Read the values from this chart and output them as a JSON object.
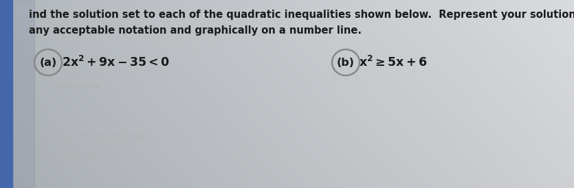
{
  "bg_color_left": "#b0b8c8",
  "bg_color_right": "#d8dce0",
  "paper_color_left": "#c8cdd5",
  "paper_color_right": "#e8eaec",
  "binder_color": "#4466aa",
  "instruction_line1": "ind the solution set to each of the quadratic inequalities shown below.  Represent your solution set using",
  "instruction_line2": "any acceptable notation and graphically on a number line.",
  "part_a_label": "(a)",
  "part_b_label": "(b)",
  "text_color": "#1a1a1a",
  "faded_color": "#b0b0b0",
  "faded_color2": "#c0c0c0",
  "instruction_fontsize": 10.5,
  "label_fontsize": 11.5,
  "expr_fontsize": 12.5,
  "faded_fontsize": 7.5,
  "ellipse_color": "#888888",
  "ellipse_lw": 1.8
}
